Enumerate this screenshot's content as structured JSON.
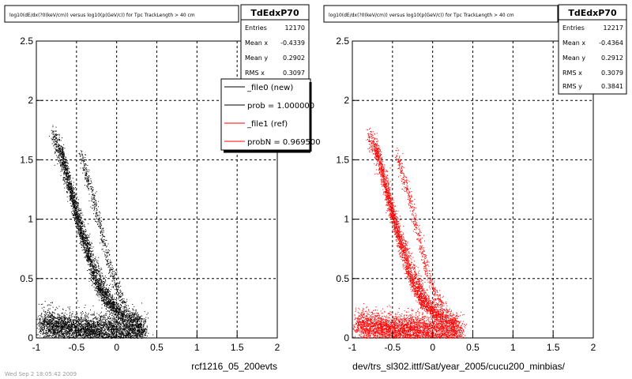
{
  "colors": {
    "new": "#000000",
    "ref": "#ff0000",
    "grid": "#000000",
    "frame": "#000000"
  },
  "footer_text": "Wed Sep 2 18:05:42 2009",
  "chart_data": [
    {
      "type": "scatter",
      "title": "log10(dE/dx(?0(keV/cm)) versus log10(p(GeV/c)) for Tpc TrackLength > 40 cm",
      "xlabel": "rcf1216_05_200evts",
      "ylabel": "",
      "xlim": [
        -1,
        2
      ],
      "ylim": [
        0,
        2.5
      ],
      "grid": true,
      "xticks": [
        "-1",
        "-0.5",
        "0",
        "0.5",
        "1",
        "1.5",
        "2"
      ],
      "yticks": [
        "0",
        "0.5",
        "1",
        "1.5",
        "2",
        "2.5"
      ],
      "series_color": "#000000",
      "stats": {
        "name": "TdEdxP70",
        "rows": [
          {
            "label": "Entries",
            "value": "12170"
          },
          {
            "label": "Mean x",
            "value": "-0.4339"
          },
          {
            "label": "Mean y",
            "value": "0.2902"
          },
          {
            "label": "RMS x",
            "value": "0.3097"
          }
        ]
      },
      "legend": [
        {
          "label": "_file0 (new)",
          "color": "#000000"
        },
        {
          "label": "prob = 1.000000",
          "color": "#000000"
        },
        {
          "label": "_file1 (ref)",
          "color": "#ff0000"
        },
        {
          "label": "probN = 0.969500",
          "color": "#ff0000"
        }
      ],
      "bands": [
        {
          "name": "electron-band",
          "points": [
            [
              -0.8,
              1.74
            ],
            [
              -0.7,
              1.55
            ],
            [
              -0.55,
              1.18
            ],
            [
              -0.45,
              0.92
            ],
            [
              -0.35,
              0.74
            ],
            [
              -0.2,
              0.48
            ],
            [
              -0.1,
              0.32
            ],
            [
              0.1,
              0.18
            ]
          ],
          "count": 1300,
          "spread": 0.04
        },
        {
          "name": "proton-band",
          "points": [
            [
              -0.7,
              1.6
            ],
            [
              -0.6,
              1.32
            ],
            [
              -0.5,
              1.04
            ],
            [
              -0.4,
              0.78
            ],
            [
              -0.28,
              0.5
            ],
            [
              -0.15,
              0.32
            ],
            [
              0.05,
              0.2
            ],
            [
              0.3,
              0.12
            ]
          ],
          "count": 1700,
          "spread": 0.03
        },
        {
          "name": "kaon-band",
          "points": [
            [
              -0.45,
              1.56
            ],
            [
              -0.38,
              1.38
            ],
            [
              -0.3,
              1.2
            ],
            [
              -0.22,
              0.98
            ],
            [
              -0.15,
              0.78
            ],
            [
              -0.08,
              0.58
            ],
            [
              0.0,
              0.42
            ],
            [
              0.1,
              0.28
            ],
            [
              0.25,
              0.18
            ]
          ],
          "count": 600,
          "spread": 0.03
        },
        {
          "name": "pion-cluster",
          "points": [
            [
              -0.95,
              0.12
            ],
            [
              -0.75,
              0.1
            ],
            [
              -0.55,
              0.09
            ],
            [
              -0.35,
              0.08
            ],
            [
              -0.15,
              0.08
            ],
            [
              0.1,
              0.07
            ],
            [
              0.35,
              0.07
            ]
          ],
          "count": 3500,
          "spread": 0.06
        }
      ]
    },
    {
      "type": "scatter",
      "title": "log10(dE/dx(?0(keV/cm)) versus log10(p(GeV/c)) for Tpc TrackLength > 40 cm",
      "xlabel": "dev/trs_sl302.ittf/Sat/year_2005/cucu200_minbias/",
      "ylabel": "",
      "xlim": [
        -1,
        2
      ],
      "ylim": [
        0,
        2.5
      ],
      "grid": true,
      "xticks": [
        "-1",
        "-0.5",
        "0",
        "0.5",
        "1",
        "1.5",
        "2"
      ],
      "yticks": [
        "0",
        "0.5",
        "1",
        "1.5",
        "2",
        "2.5"
      ],
      "series_color": "#ff0000",
      "stats": {
        "name": "TdEdxP70",
        "rows": [
          {
            "label": "Entries",
            "value": "12217"
          },
          {
            "label": "Mean x",
            "value": "-0.4364"
          },
          {
            "label": "Mean y",
            "value": "0.2912"
          },
          {
            "label": "RMS x",
            "value": "0.3079"
          },
          {
            "label": "RMS y",
            "value": "0.3841"
          }
        ]
      },
      "legend": [],
      "bands": [
        {
          "name": "electron-band",
          "points": [
            [
              -0.8,
              1.74
            ],
            [
              -0.7,
              1.55
            ],
            [
              -0.55,
              1.18
            ],
            [
              -0.45,
              0.92
            ],
            [
              -0.35,
              0.74
            ],
            [
              -0.2,
              0.48
            ],
            [
              -0.1,
              0.32
            ],
            [
              0.1,
              0.18
            ]
          ],
          "count": 1300,
          "spread": 0.04
        },
        {
          "name": "proton-band",
          "points": [
            [
              -0.7,
              1.6
            ],
            [
              -0.6,
              1.32
            ],
            [
              -0.5,
              1.04
            ],
            [
              -0.4,
              0.78
            ],
            [
              -0.28,
              0.5
            ],
            [
              -0.15,
              0.32
            ],
            [
              0.05,
              0.2
            ],
            [
              0.3,
              0.12
            ]
          ],
          "count": 1700,
          "spread": 0.03
        },
        {
          "name": "kaon-band",
          "points": [
            [
              -0.45,
              1.56
            ],
            [
              -0.38,
              1.38
            ],
            [
              -0.3,
              1.2
            ],
            [
              -0.22,
              0.98
            ],
            [
              -0.15,
              0.78
            ],
            [
              -0.08,
              0.58
            ],
            [
              0.0,
              0.42
            ],
            [
              0.1,
              0.28
            ],
            [
              0.25,
              0.18
            ]
          ],
          "count": 600,
          "spread": 0.03
        },
        {
          "name": "pion-cluster",
          "points": [
            [
              -0.95,
              0.12
            ],
            [
              -0.75,
              0.1
            ],
            [
              -0.55,
              0.09
            ],
            [
              -0.35,
              0.08
            ],
            [
              -0.15,
              0.08
            ],
            [
              0.1,
              0.07
            ],
            [
              0.35,
              0.07
            ]
          ],
          "count": 3500,
          "spread": 0.06
        }
      ]
    }
  ]
}
